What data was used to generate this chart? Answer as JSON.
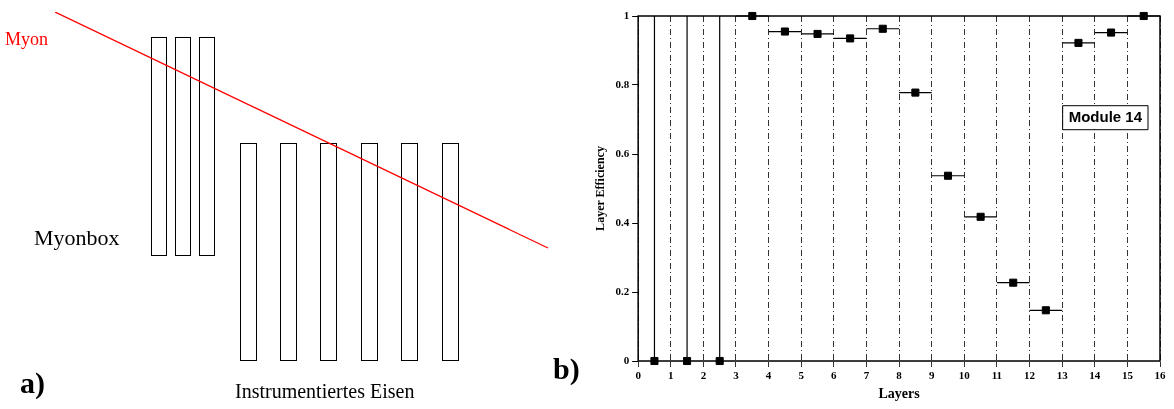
{
  "chart_data": [
    {
      "type": "other",
      "annotations": [
        "Myon",
        "Myonbox",
        "Instrumentiertes Eisen",
        "a)"
      ]
    },
    {
      "type": "scatter",
      "xlabel": "Layers",
      "ylabel": "Layer Efficiency",
      "annotations": [
        "Module 14",
        "b)"
      ],
      "x": [
        0.5,
        1.5,
        2.5,
        3.5,
        4.5,
        5.5,
        6.5,
        7.5,
        8.5,
        9.5,
        10.5,
        11.5,
        12.5,
        13.5,
        14.5,
        15.5
      ],
      "values": [
        0,
        0,
        0,
        1,
        0.955,
        0.948,
        0.935,
        0.963,
        0.778,
        0.537,
        0.418,
        0.227,
        0.147,
        0.922,
        0.952,
        1
      ],
      "errors": [
        [
          0,
          1
        ],
        [
          0,
          1
        ],
        [
          0,
          1
        ],
        null,
        null,
        null,
        null,
        null,
        null,
        null,
        null,
        null,
        null,
        null,
        null,
        null
      ],
      "xerrors": [
        null,
        null,
        null,
        0.5,
        0.5,
        0.5,
        0.5,
        0.5,
        0.5,
        0.5,
        0.5,
        0.5,
        0.5,
        0.5,
        0.5,
        0.5
      ],
      "color": "#000000",
      "marker": "square",
      "grid": "x",
      "legend": false,
      "xlim": [
        0,
        16
      ],
      "xticks": [
        0,
        1,
        2,
        3,
        4,
        5,
        6,
        7,
        8,
        9,
        10,
        11,
        12,
        13,
        14,
        15,
        16
      ],
      "ylim": [
        0,
        1
      ],
      "yticks": [
        0,
        0.2,
        0.4,
        0.6,
        0.8,
        1
      ]
    }
  ]
}
